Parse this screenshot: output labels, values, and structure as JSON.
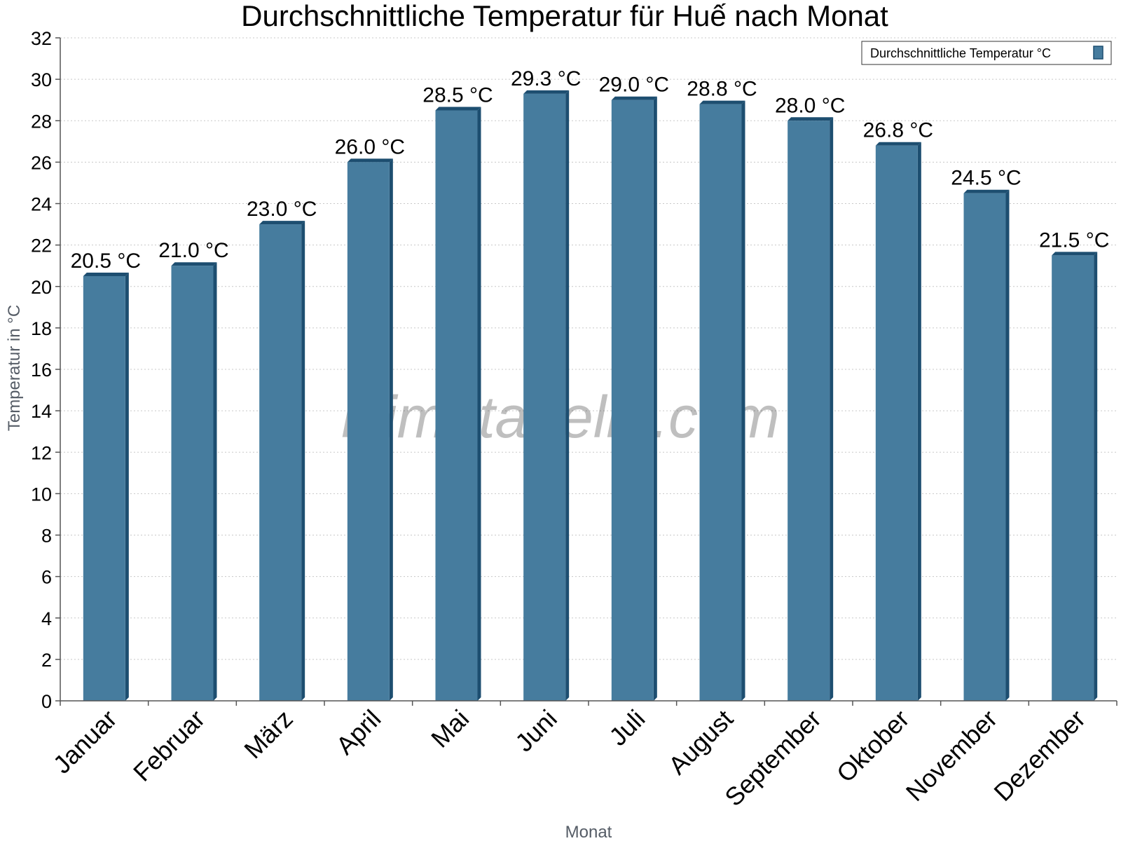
{
  "chart_data": {
    "type": "bar",
    "title": "Durchschnittliche Temperatur für Huế nach Monat",
    "xlabel": "Monat",
    "ylabel": "Temperatur in °C",
    "ylim": [
      0,
      32
    ],
    "ytick_step": 2,
    "grid": true,
    "legend_position": "top-right",
    "categories": [
      "Januar",
      "Februar",
      "März",
      "April",
      "Mai",
      "Juni",
      "Juli",
      "August",
      "September",
      "Oktober",
      "November",
      "Dezember"
    ],
    "series": [
      {
        "name": "Durchschnittliche Temperatur °C",
        "values": [
          20.5,
          21.0,
          23.0,
          26.0,
          28.5,
          29.3,
          29.0,
          28.8,
          28.0,
          26.8,
          24.5,
          21.5
        ],
        "value_labels": [
          "20.5 °C",
          "21.0 °C",
          "23.0 °C",
          "26.0 °C",
          "28.5 °C",
          "29.3 °C",
          "29.0 °C",
          "28.8 °C",
          "28.0 °C",
          "26.8 °C",
          "24.5 °C",
          "21.5 °C"
        ]
      }
    ],
    "watermark": "klimatabelle.com",
    "colors": {
      "bar_face": "#467c9e",
      "bar_top": "#1d4e70",
      "bar_side": "#1d4e70"
    }
  }
}
